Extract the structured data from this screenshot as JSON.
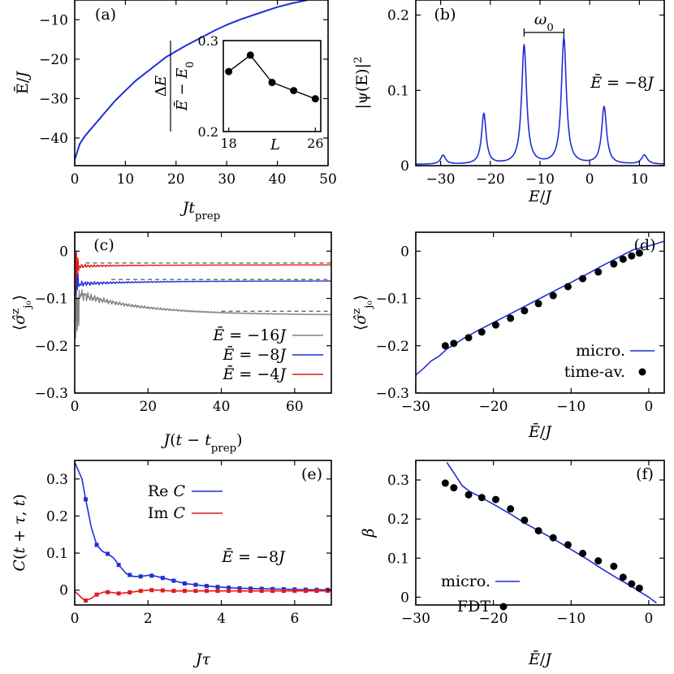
{
  "chart_data": [
    {
      "id": "a",
      "type": "line",
      "panel_label": "(a)",
      "xlabel": "Jt_prep",
      "ylabel": "Ē/J",
      "xlim": [
        0,
        50
      ],
      "ylim": [
        -47,
        -5
      ],
      "xticks": [
        "0",
        "10",
        "20",
        "30",
        "40",
        "50"
      ],
      "yticks": [
        "−40",
        "−30",
        "−20",
        "−10"
      ],
      "series": [
        {
          "color": "#1f2fd6",
          "x": [
            0,
            1,
            2,
            3,
            4,
            5,
            6,
            8,
            10,
            12,
            15,
            18,
            20,
            22,
            25,
            28,
            30,
            33,
            36,
            40,
            43,
            46
          ],
          "y": [
            -45.5,
            -41.5,
            -39.5,
            -38,
            -36.5,
            -35,
            -33.5,
            -30.5,
            -28,
            -25.5,
            -22.5,
            -19.5,
            -18,
            -16.5,
            -14.5,
            -12.5,
            -11.3,
            -9.8,
            -8.5,
            -6.8,
            -5.8,
            -5
          ]
        }
      ],
      "inset": {
        "type": "line",
        "xlabel": "L",
        "ylabel": "ΔE / (Ē − E₀)",
        "xlim": [
          17.5,
          26.5
        ],
        "ylim": [
          0.2,
          0.3
        ],
        "xticks": [
          "18",
          "26"
        ],
        "yticks": [
          "0.2",
          "0.3"
        ],
        "x": [
          18,
          20,
          22,
          24,
          26
        ],
        "y": [
          0.266,
          0.284,
          0.254,
          0.245,
          0.236
        ]
      }
    },
    {
      "id": "b",
      "type": "line",
      "panel_label": "(b)",
      "xlabel": "E/J",
      "ylabel": "|ψ(E)|²",
      "xlim": [
        -35,
        15
      ],
      "ylim": [
        0,
        0.22
      ],
      "xticks": [
        "−30",
        "−20",
        "−10",
        "0",
        "10"
      ],
      "yticks": [
        "0",
        "0.1",
        "0.2"
      ],
      "annotation_energy": "Ē = −8J",
      "bracket_label": "ω₀",
      "peaks": [
        {
          "center": -29.5,
          "height": 0.012,
          "width": 0.6
        },
        {
          "center": -21.3,
          "height": 0.067,
          "width": 0.55
        },
        {
          "center": -13.2,
          "height": 0.158,
          "width": 0.6
        },
        {
          "center": -5.2,
          "height": 0.168,
          "width": 0.6
        },
        {
          "center": 2.9,
          "height": 0.076,
          "width": 0.6
        },
        {
          "center": 11,
          "height": 0.012,
          "width": 0.7
        }
      ],
      "series": [
        {
          "color": "#1f2fd6"
        }
      ]
    },
    {
      "id": "c",
      "type": "line",
      "panel_label": "(c)",
      "xlabel": "J(t − t_prep)",
      "ylabel": "⟨σ̂ᶻ_j0⟩",
      "xlim": [
        0,
        70
      ],
      "ylim": [
        -0.3,
        0.04
      ],
      "xticks": [
        "0",
        "20",
        "40",
        "60"
      ],
      "yticks": [
        "−0.3",
        "−0.2",
        "−0.1",
        "0"
      ],
      "series": [
        {
          "name": "Ē = −16J",
          "color": "#808080",
          "final": -0.135,
          "dashed": -0.127,
          "dash_start": 40
        },
        {
          "name": "Ē = −8J",
          "color": "#1f2fd6",
          "final": -0.063,
          "dashed": -0.06,
          "dash_start": 10
        },
        {
          "name": "Ē = −4J",
          "color": "#e31a1c",
          "final": -0.029,
          "dashed": -0.025,
          "dash_start": 3
        }
      ]
    },
    {
      "id": "d",
      "type": "line",
      "panel_label": "(d)",
      "xlabel": "Ē/J",
      "ylabel": "⟨σ̂ᶻ_j0⟩",
      "xlim": [
        -30,
        2
      ],
      "ylim": [
        -0.3,
        0.04
      ],
      "xticks": [
        "−30",
        "−20",
        "−10",
        "0"
      ],
      "yticks": [
        "−0.3",
        "−0.2",
        "−0.1",
        "0"
      ],
      "series": [
        {
          "name": "micro.",
          "style": "line",
          "color": "#1f2fd6",
          "x": [
            -30,
            -29,
            -28,
            -27,
            -26,
            -25,
            -24,
            -22,
            -20,
            -18,
            -16,
            -14,
            -12,
            -10,
            -8,
            -6,
            -4,
            -2,
            0,
            2
          ],
          "y": [
            -0.262,
            -0.248,
            -0.232,
            -0.222,
            -0.207,
            -0.197,
            -0.186,
            -0.168,
            -0.151,
            -0.134,
            -0.117,
            -0.1,
            -0.083,
            -0.066,
            -0.049,
            -0.031,
            -0.014,
            0.003,
            0.011,
            0.021
          ]
        },
        {
          "name": "time-av.",
          "style": "points",
          "color": "#000000",
          "x": [
            -26.2,
            -25.1,
            -23.2,
            -21.5,
            -19.7,
            -17.8,
            -16,
            -14.2,
            -12.3,
            -10.4,
            -8.5,
            -6.5,
            -4.5,
            -3.3,
            -2.2,
            -1.2
          ],
          "y": [
            -0.2,
            -0.195,
            -0.183,
            -0.171,
            -0.156,
            -0.142,
            -0.126,
            -0.111,
            -0.094,
            -0.075,
            -0.058,
            -0.044,
            -0.027,
            -0.017,
            -0.01,
            -0.004
          ]
        }
      ]
    },
    {
      "id": "e",
      "type": "line",
      "panel_label": "(e)",
      "xlabel": "Jτ",
      "ylabel": "C(t + τ, t)",
      "xlim": [
        0,
        7
      ],
      "ylim": [
        -0.04,
        0.35
      ],
      "xticks": [
        "0",
        "2",
        "4",
        "6"
      ],
      "yticks": [
        "0",
        "0.1",
        "0.2",
        "0.3"
      ],
      "annotation_energy": "Ē = −8J",
      "series": [
        {
          "name": "Re C",
          "color": "#1f2fd6",
          "x": [
            0,
            0.2,
            0.3,
            0.45,
            0.6,
            0.75,
            0.9,
            1.05,
            1.2,
            1.4,
            1.6,
            1.8,
            2.0,
            2.2,
            2.4,
            2.6,
            2.8,
            3.0,
            3.5,
            4.0,
            4.5,
            5.0,
            5.5,
            6.0,
            6.5,
            7.0
          ],
          "y": [
            0.345,
            0.3,
            0.245,
            0.17,
            0.122,
            0.105,
            0.098,
            0.088,
            0.068,
            0.045,
            0.037,
            0.037,
            0.04,
            0.038,
            0.033,
            0.028,
            0.023,
            0.018,
            0.012,
            0.008,
            0.005,
            0.004,
            0.003,
            0.002,
            0.001,
            0.001
          ],
          "markers_x": [
            0.3,
            0.6,
            0.9,
            1.2,
            1.5,
            1.8,
            2.1,
            2.4,
            2.7,
            3.0,
            3.3,
            3.6,
            3.9,
            4.2,
            4.5,
            4.8,
            5.1,
            5.4,
            5.7,
            6.0,
            6.3,
            6.6,
            6.9
          ]
        },
        {
          "name": "Im C",
          "color": "#e31a1c",
          "x": [
            0,
            0.1,
            0.2,
            0.3,
            0.45,
            0.6,
            0.8,
            1.0,
            1.2,
            1.5,
            1.8,
            2.0,
            2.3,
            2.6,
            3.0,
            4.0,
            5.0,
            6.0,
            7.0
          ],
          "y": [
            -0.003,
            -0.012,
            -0.022,
            -0.028,
            -0.022,
            -0.012,
            -0.005,
            -0.006,
            -0.009,
            -0.006,
            -0.002,
            0.0,
            0.0,
            -0.002,
            -0.002,
            -0.002,
            -0.002,
            -0.002,
            -0.002
          ],
          "markers_x": [
            0.3,
            0.6,
            0.9,
            1.2,
            1.5,
            1.8,
            2.1,
            2.4,
            2.7,
            3.0,
            3.3,
            3.6,
            3.9,
            4.2,
            4.5,
            4.8,
            5.1,
            5.4,
            5.7,
            6.0,
            6.3,
            6.6,
            6.9
          ]
        }
      ]
    },
    {
      "id": "f",
      "type": "line",
      "panel_label": "(f)",
      "xlabel": "Ē/J",
      "ylabel": "β",
      "xlim": [
        -30,
        2
      ],
      "ylim": [
        -0.02,
        0.35
      ],
      "xticks": [
        "−30",
        "−20",
        "−10",
        "0"
      ],
      "yticks": [
        "0",
        "0.1",
        "0.2",
        "0.3"
      ],
      "series": [
        {
          "name": "micro.",
          "style": "line",
          "color": "#1f2fd6",
          "x": [
            -26,
            -25,
            -24,
            -23,
            -22,
            -20,
            -18,
            -16,
            -14,
            -12,
            -10,
            -8,
            -6,
            -4,
            -2,
            -1,
            0,
            1
          ],
          "y": [
            0.345,
            0.315,
            0.285,
            0.27,
            0.26,
            0.238,
            0.215,
            0.19,
            0.168,
            0.146,
            0.122,
            0.098,
            0.072,
            0.048,
            0.025,
            0.012,
            0.0,
            -0.015
          ]
        },
        {
          "name": "FDT",
          "style": "points",
          "color": "#000000",
          "x": [
            -26.2,
            -25.1,
            -23.2,
            -21.5,
            -19.7,
            -17.8,
            -16,
            -14.2,
            -12.3,
            -10.4,
            -8.5,
            -6.5,
            -4.5,
            -3.3,
            -2.2,
            -1.2
          ],
          "y": [
            0.292,
            0.28,
            0.262,
            0.255,
            0.25,
            0.226,
            0.197,
            0.17,
            0.152,
            0.134,
            0.112,
            0.093,
            0.079,
            0.051,
            0.034,
            0.023
          ]
        }
      ]
    }
  ]
}
